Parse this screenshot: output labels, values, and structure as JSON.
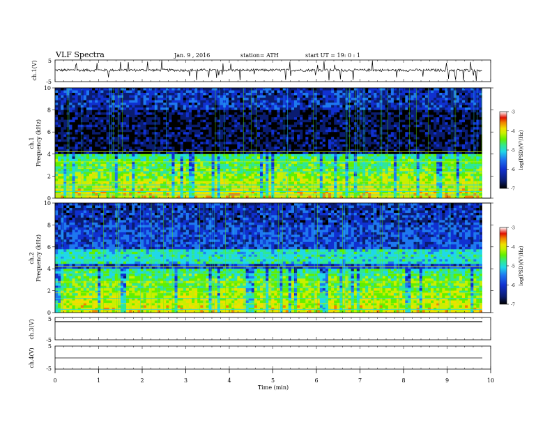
{
  "header": {
    "title": "VLF  Spectra",
    "date": "Jan. 9  , 2016",
    "station": "station= ATH",
    "start": "start  UT =   19: 0  : 1"
  },
  "colors": {
    "colormap": [
      "#000000",
      "#0a1c70",
      "#1030d0",
      "#1e78f0",
      "#20d8e8",
      "#30e890",
      "#60f000",
      "#c8f000",
      "#f0e000",
      "#f08000",
      "#e01000",
      "#ffffff"
    ]
  },
  "chart_data": [
    {
      "type": "line",
      "panel": "ch1-waveform",
      "ylabel": "ch.1(V)",
      "yticks": [
        "5",
        "-5"
      ],
      "ylim": [
        -5,
        5
      ],
      "xlim": [
        0,
        10
      ],
      "series": [
        {
          "baseline": 0.3,
          "spike_range": [
            -5,
            5
          ]
        }
      ]
    },
    {
      "type": "heatmap",
      "panel": "ch1-spectrogram",
      "ylabel": "ch.1\nFrequency  (kHz)",
      "ylabel_lines": [
        "ch.1",
        "Frequency  (kHz)"
      ],
      "yticks": [
        "0",
        "2",
        "4",
        "6",
        "8",
        "10"
      ],
      "ylim": [
        0,
        10
      ],
      "xlim": [
        0,
        9.8
      ],
      "colorbar": {
        "label": "log(PSD)(V²/Hz)",
        "ticks": [
          "-3",
          "-4",
          "-5",
          "-6",
          "-7"
        ],
        "range": [
          -7,
          -3
        ]
      }
    },
    {
      "type": "heatmap",
      "panel": "ch2-spectrogram",
      "ylabel": "ch.2\nFrequency  (kHz)",
      "ylabel_lines": [
        "ch.2",
        "Frequency  (kHz)"
      ],
      "yticks": [
        "0",
        "2",
        "4",
        "6",
        "8",
        "10"
      ],
      "ylim": [
        0,
        10
      ],
      "xlim": [
        0,
        9.8
      ],
      "colorbar": {
        "label": "log(PSD)(V²/Hz)",
        "ticks": [
          "-3",
          "-4",
          "-5",
          "-6",
          "-7"
        ],
        "range": [
          -7,
          -3
        ]
      }
    },
    {
      "type": "line",
      "panel": "ch3-waveform",
      "ylabel": "ch.3(V)",
      "yticks": [
        "5",
        "-5"
      ],
      "ylim": [
        -5,
        5
      ],
      "series": [
        {
          "baseline": 4.0
        }
      ]
    },
    {
      "type": "line",
      "panel": "ch4-waveform",
      "ylabel": "ch.4(V)",
      "yticks": [
        "5",
        "-5"
      ],
      "ylim": [
        -5,
        5
      ],
      "series": [
        {
          "baseline": 0.0
        }
      ]
    }
  ],
  "xaxis": {
    "label": "Time  (min)",
    "ticks": [
      "0",
      "1",
      "2",
      "3",
      "4",
      "5",
      "6",
      "7",
      "8",
      "9",
      "10"
    ],
    "range": [
      0,
      10
    ]
  }
}
